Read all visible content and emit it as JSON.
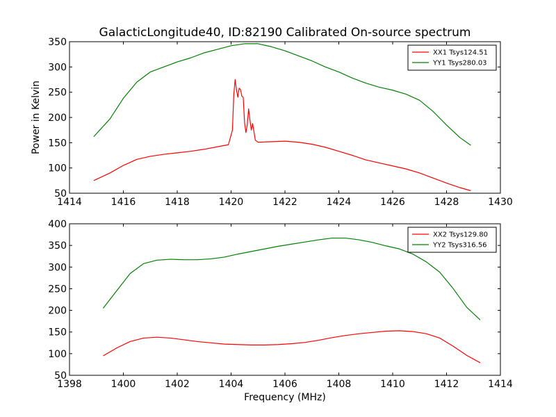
{
  "chart_data": [
    {
      "type": "line",
      "title": "GalacticLongitude40, ID:82190 Calibrated On-source spectrum",
      "xlabel": "",
      "ylabel": "Power in Kelvin",
      "xlim": [
        1414,
        1430
      ],
      "ylim": [
        50,
        350
      ],
      "xticks": [
        "1414",
        "1416",
        "1418",
        "1420",
        "1422",
        "1424",
        "1426",
        "1428",
        "1430"
      ],
      "yticks": [
        "50",
        "100",
        "150",
        "200",
        "250",
        "300",
        "350"
      ],
      "legend_position": "top-right",
      "series": [
        {
          "name": "XX1 Tsys124.51",
          "color": "#ff0000",
          "x": [
            1414.9,
            1415.5,
            1416.0,
            1416.5,
            1417.0,
            1417.5,
            1418.0,
            1418.5,
            1419.0,
            1419.5,
            1419.9,
            1420.05,
            1420.1,
            1420.15,
            1420.2,
            1420.25,
            1420.3,
            1420.35,
            1420.4,
            1420.45,
            1420.5,
            1420.55,
            1420.6,
            1420.65,
            1420.7,
            1420.75,
            1420.8,
            1420.9,
            1421.0,
            1421.5,
            1422.0,
            1422.5,
            1423.0,
            1423.5,
            1424.0,
            1424.5,
            1425.0,
            1425.5,
            1426.0,
            1426.5,
            1427.0,
            1427.5,
            1428.0,
            1428.5,
            1428.9
          ],
          "values": [
            75,
            90,
            105,
            117,
            123,
            127,
            130,
            133,
            137,
            142,
            146,
            175,
            245,
            275,
            255,
            240,
            258,
            255,
            242,
            240,
            190,
            170,
            185,
            217,
            195,
            175,
            188,
            155,
            151,
            152,
            153,
            151,
            147,
            141,
            133,
            125,
            116,
            110,
            104,
            98,
            90,
            80,
            70,
            61,
            55
          ]
        },
        {
          "name": "YY1 Tsys280.03",
          "color": "#008000",
          "x": [
            1414.9,
            1415.5,
            1416.0,
            1416.5,
            1417.0,
            1417.5,
            1418.0,
            1418.5,
            1419.0,
            1419.5,
            1420.0,
            1420.5,
            1421.0,
            1421.5,
            1422.0,
            1422.5,
            1423.0,
            1423.5,
            1424.0,
            1424.5,
            1425.0,
            1425.5,
            1426.0,
            1426.5,
            1427.0,
            1427.5,
            1428.0,
            1428.5,
            1428.9
          ],
          "values": [
            162,
            197,
            238,
            270,
            290,
            300,
            310,
            318,
            328,
            335,
            342,
            346,
            346,
            340,
            332,
            322,
            312,
            300,
            290,
            278,
            268,
            260,
            254,
            246,
            234,
            212,
            185,
            160,
            145
          ]
        }
      ]
    },
    {
      "type": "line",
      "title": "",
      "xlabel": "Frequency (MHz)",
      "ylabel": "",
      "xlim": [
        1398,
        1414
      ],
      "ylim": [
        50,
        400
      ],
      "xticks": [
        "1398",
        "1400",
        "1402",
        "1404",
        "1406",
        "1408",
        "1410",
        "1412",
        "1414"
      ],
      "yticks": [
        "50",
        "100",
        "150",
        "200",
        "250",
        "300",
        "350",
        "400"
      ],
      "legend_position": "top-right",
      "series": [
        {
          "name": "XX2 Tsys129.80",
          "color": "#ff0000",
          "x": [
            1399.25,
            1399.75,
            1400.25,
            1400.75,
            1401.25,
            1401.75,
            1402.25,
            1402.75,
            1403.25,
            1403.75,
            1404.25,
            1404.75,
            1405.25,
            1405.75,
            1406.25,
            1406.75,
            1407.25,
            1407.75,
            1408.25,
            1408.75,
            1409.25,
            1409.75,
            1410.25,
            1410.75,
            1411.25,
            1411.75,
            1412.25,
            1412.75,
            1413.25
          ],
          "values": [
            95,
            113,
            128,
            136,
            138,
            136,
            132,
            128,
            125,
            122,
            121,
            120,
            120,
            121,
            123,
            126,
            131,
            137,
            142,
            146,
            149,
            152,
            153,
            151,
            146,
            136,
            117,
            96,
            79
          ]
        },
        {
          "name": "YY2 Tsys316.56",
          "color": "#008000",
          "x": [
            1399.25,
            1399.75,
            1400.25,
            1400.75,
            1401.25,
            1401.75,
            1402.25,
            1402.75,
            1403.25,
            1403.75,
            1404.25,
            1404.75,
            1405.25,
            1405.75,
            1406.25,
            1406.75,
            1407.25,
            1407.75,
            1408.25,
            1408.75,
            1409.25,
            1409.75,
            1410.25,
            1410.75,
            1411.25,
            1411.75,
            1412.25,
            1412.75,
            1413.25
          ],
          "values": [
            205,
            245,
            285,
            308,
            316,
            318,
            317,
            317,
            319,
            323,
            330,
            336,
            342,
            348,
            353,
            358,
            363,
            367,
            367,
            363,
            357,
            349,
            342,
            330,
            312,
            288,
            250,
            207,
            178
          ]
        }
      ]
    }
  ]
}
